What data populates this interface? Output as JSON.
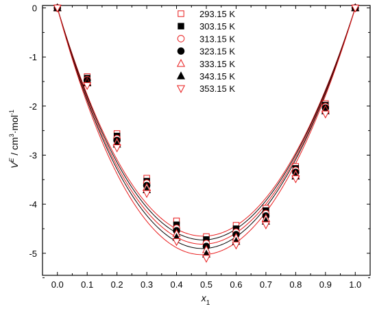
{
  "chart_data": {
    "type": "scatter",
    "title": "",
    "xlabel": "x",
    "xlabel_sub": "1",
    "ylabel_parts": {
      "v": "V",
      "sup_e": "E",
      "text1": " / cm",
      "sup_3": "3",
      "text2": "·mol",
      "sup_m1": "-1"
    },
    "xlim": [
      -0.05,
      1.05
    ],
    "ylim": [
      -5.45,
      0.05
    ],
    "xticks": [
      "0.0",
      "0.1",
      "0.2",
      "0.3",
      "0.4",
      "0.5",
      "0.6",
      "0.7",
      "0.8",
      "0.9",
      "1.0"
    ],
    "yticks": [
      "0",
      "-1",
      "-2",
      "-3",
      "-4",
      "-5"
    ],
    "legend_position": "top-center",
    "grid": false,
    "x": [
      0.0,
      0.1,
      0.2,
      0.3,
      0.4,
      0.5,
      0.6,
      0.7,
      0.8,
      0.9,
      1.0
    ],
    "series": [
      {
        "name": "293.15 K",
        "marker": "square-open",
        "color": "#e8191a",
        "fit_color": "#e8191a",
        "values": [
          0.0,
          -1.4,
          -2.56,
          -3.47,
          -4.34,
          -4.66,
          -4.43,
          -4.08,
          -3.23,
          -1.95,
          0.0
        ]
      },
      {
        "name": "303.15 K",
        "marker": "square-filled",
        "color": "#000000",
        "fit_color": "#000000",
        "values": [
          0.0,
          -1.43,
          -2.61,
          -3.53,
          -4.42,
          -4.72,
          -4.5,
          -4.13,
          -3.27,
          -1.98,
          0.0
        ]
      },
      {
        "name": "313.15 K",
        "marker": "circle-open",
        "color": "#e8191a",
        "fit_color": "#e8191a",
        "values": [
          0.0,
          -1.46,
          -2.66,
          -3.57,
          -4.49,
          -4.8,
          -4.57,
          -4.19,
          -3.31,
          -2.01,
          0.0
        ]
      },
      {
        "name": "323.15 K",
        "marker": "circle-filled",
        "color": "#000000",
        "fit_color": "#000000",
        "values": [
          0.0,
          -1.48,
          -2.7,
          -3.62,
          -4.54,
          -4.86,
          -4.62,
          -4.24,
          -3.35,
          -2.04,
          0.0
        ]
      },
      {
        "name": "333.15 K",
        "marker": "triangle-up-open",
        "color": "#e8191a",
        "fit_color": "#e8191a",
        "values": [
          0.0,
          -1.51,
          -2.74,
          -3.66,
          -4.6,
          -4.93,
          -4.68,
          -4.29,
          -3.39,
          -2.07,
          0.0
        ]
      },
      {
        "name": "343.15 K",
        "marker": "triangle-up-filled",
        "color": "#000000",
        "fit_color": "#000000",
        "values": [
          0.0,
          -1.53,
          -2.78,
          -3.71,
          -4.68,
          -5.02,
          -4.76,
          -4.35,
          -3.43,
          -2.1,
          0.0
        ]
      },
      {
        "name": "353.15 K",
        "marker": "triangle-down-open",
        "color": "#e8191a",
        "fit_color": "#e8191a",
        "values": [
          0.0,
          -1.58,
          -2.85,
          -3.78,
          -4.76,
          -5.1,
          -4.83,
          -4.42,
          -3.48,
          -2.16,
          0.0
        ]
      }
    ],
    "fit_curves": [
      {
        "color": "#e8191a",
        "a": [
          -18.6,
          0.7,
          -0.8
        ]
      },
      {
        "color": "#000000",
        "a": [
          -18.9,
          0.8,
          -0.8
        ]
      },
      {
        "color": "#e8191a",
        "a": [
          -19.25,
          0.9,
          -0.9
        ]
      },
      {
        "color": "#000000",
        "a": [
          -19.6,
          1.0,
          -0.9
        ]
      },
      {
        "color": "#e8191a",
        "a": [
          -20.1,
          1.1,
          -1.0
        ]
      }
    ]
  }
}
